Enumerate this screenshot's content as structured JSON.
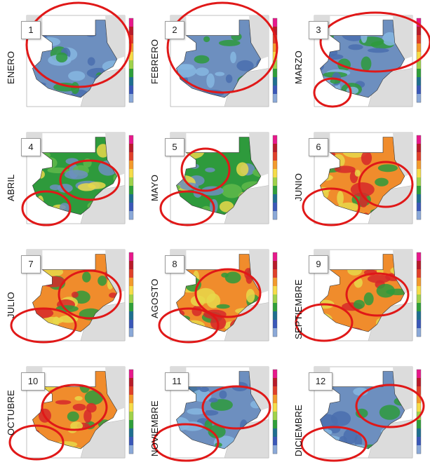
{
  "panels": [
    {
      "number": "1",
      "month": "ENERO",
      "scheme": "cool"
    },
    {
      "number": "2",
      "month": "FEBRERO",
      "scheme": "cool"
    },
    {
      "number": "3",
      "month": "MARZO",
      "scheme": "cool"
    },
    {
      "number": "4",
      "month": "ABRIL",
      "scheme": "mixed"
    },
    {
      "number": "5",
      "month": "MAYO",
      "scheme": "mixed"
    },
    {
      "number": "6",
      "month": "JUNIO",
      "scheme": "warm"
    },
    {
      "number": "7",
      "month": "JULIO",
      "scheme": "warm"
    },
    {
      "number": "8",
      "month": "AGOSTO",
      "scheme": "warm"
    },
    {
      "number": "9",
      "month": "SEPTIEMBRE",
      "scheme": "warm"
    },
    {
      "number": "10",
      "month": "OCTUBRE",
      "scheme": "warm"
    },
    {
      "number": "11",
      "month": "NOVIEMBRE",
      "scheme": "cool"
    },
    {
      "number": "12",
      "month": "DICIEMBRE",
      "scheme": "cool"
    }
  ],
  "colors": {
    "circle": "#e01818",
    "map_blue": "#6d8fbf",
    "map_green": "#2e9a3c",
    "map_yellow": "#e8d84a",
    "map_orange": "#f08c2c",
    "map_red": "#d6282a",
    "land_gray": "#dcdcdc",
    "sea": "#ffffff",
    "colorbar": [
      "#e8188c",
      "#b81b2a",
      "#e0402a",
      "#f39a2c",
      "#f6dc48",
      "#9fd24a",
      "#2f9f3a",
      "#1f6f8f",
      "#3a58b8",
      "#8aa8d8"
    ]
  }
}
